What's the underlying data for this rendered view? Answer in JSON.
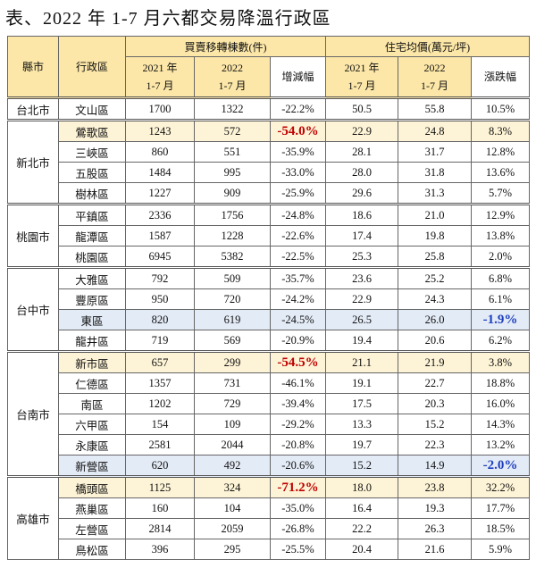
{
  "title": "表、2022 年 1-7 月六都交易降溫行政區",
  "table": {
    "header": {
      "county": "縣市",
      "district": "行政區",
      "transactions": {
        "title": "買賣移轉棟數(件)",
        "col_2021": [
          "2021 年",
          "1-7 月"
        ],
        "col_2022": [
          "2022",
          "1-7 月"
        ],
        "change": "增減幅"
      },
      "price": {
        "title": "住宅均價(萬元/坪)",
        "col_2021": [
          "2021 年",
          "1-7 月"
        ],
        "col_2022": [
          "2022",
          "1-7 月"
        ],
        "change": "漲跌幅"
      }
    },
    "groups": [
      {
        "county": "台北市",
        "rows": [
          {
            "cells": [
              "文山區",
              "1700",
              "1322",
              "-22.2%",
              "50.5",
              "55.8",
              "10.5%"
            ]
          }
        ]
      },
      {
        "county": "新北市",
        "rows": [
          {
            "cells": [
              "鶯歌區",
              "1243",
              "572",
              "-54.0%",
              "22.9",
              "24.8",
              "8.3%"
            ],
            "highlight": "#fdf3d6",
            "emphasis": {
              "cell": 3,
              "color": "#c00000"
            }
          },
          {
            "cells": [
              "三峽區",
              "860",
              "551",
              "-35.9%",
              "28.1",
              "31.7",
              "12.8%"
            ]
          },
          {
            "cells": [
              "五股區",
              "1484",
              "995",
              "-33.0%",
              "28.0",
              "31.8",
              "13.6%"
            ]
          },
          {
            "cells": [
              "樹林區",
              "1227",
              "909",
              "-25.9%",
              "29.6",
              "31.3",
              "5.7%"
            ]
          }
        ]
      },
      {
        "county": "桃園市",
        "rows": [
          {
            "cells": [
              "平鎮區",
              "2336",
              "1756",
              "-24.8%",
              "18.6",
              "21.0",
              "12.9%"
            ]
          },
          {
            "cells": [
              "龍潭區",
              "1587",
              "1228",
              "-22.6%",
              "17.4",
              "19.8",
              "13.8%"
            ]
          },
          {
            "cells": [
              "桃園區",
              "6945",
              "5382",
              "-22.5%",
              "25.3",
              "25.8",
              "2.0%"
            ]
          }
        ]
      },
      {
        "county": "台中市",
        "rows": [
          {
            "cells": [
              "大雅區",
              "792",
              "509",
              "-35.7%",
              "23.6",
              "25.2",
              "6.8%"
            ]
          },
          {
            "cells": [
              "豐原區",
              "950",
              "720",
              "-24.2%",
              "22.9",
              "24.3",
              "6.1%"
            ]
          },
          {
            "cells": [
              "東區",
              "820",
              "619",
              "-24.5%",
              "26.5",
              "26.0",
              "-1.9%"
            ],
            "highlight": "#e3ebf6",
            "emphasis": {
              "cell": 6,
              "color": "#1f3fbf"
            }
          },
          {
            "cells": [
              "龍井區",
              "719",
              "569",
              "-20.9%",
              "19.4",
              "20.6",
              "6.2%"
            ]
          }
        ]
      },
      {
        "county": "台南市",
        "rows": [
          {
            "cells": [
              "新市區",
              "657",
              "299",
              "-54.5%",
              "21.1",
              "21.9",
              "3.8%"
            ],
            "highlight": "#fdf3d6",
            "emphasis": {
              "cell": 3,
              "color": "#c00000"
            }
          },
          {
            "cells": [
              "仁德區",
              "1357",
              "731",
              "-46.1%",
              "19.1",
              "22.7",
              "18.8%"
            ]
          },
          {
            "cells": [
              "南區",
              "1202",
              "729",
              "-39.4%",
              "17.5",
              "20.3",
              "16.0%"
            ]
          },
          {
            "cells": [
              "六甲區",
              "154",
              "109",
              "-29.2%",
              "13.3",
              "15.2",
              "14.3%"
            ]
          },
          {
            "cells": [
              "永康區",
              "2581",
              "2044",
              "-20.8%",
              "19.7",
              "22.3",
              "13.2%"
            ]
          },
          {
            "cells": [
              "新營區",
              "620",
              "492",
              "-20.6%",
              "15.2",
              "14.9",
              "-2.0%"
            ],
            "highlight": "#e3ebf6",
            "emphasis": {
              "cell": 6,
              "color": "#1f3fbf"
            }
          }
        ]
      },
      {
        "county": "高雄市",
        "rows": [
          {
            "cells": [
              "橋頭區",
              "1125",
              "324",
              "-71.2%",
              "18.0",
              "23.8",
              "32.2%"
            ],
            "highlight": "#fdf3d6",
            "emphasis": {
              "cell": 3,
              "color": "#c00000"
            }
          },
          {
            "cells": [
              "燕巢區",
              "160",
              "104",
              "-35.0%",
              "16.4",
              "19.3",
              "17.7%"
            ]
          },
          {
            "cells": [
              "左營區",
              "2814",
              "2059",
              "-26.8%",
              "22.2",
              "26.3",
              "18.5%"
            ]
          },
          {
            "cells": [
              "鳥松區",
              "396",
              "295",
              "-25.5%",
              "20.4",
              "21.6",
              "5.9%"
            ]
          }
        ]
      }
    ]
  }
}
